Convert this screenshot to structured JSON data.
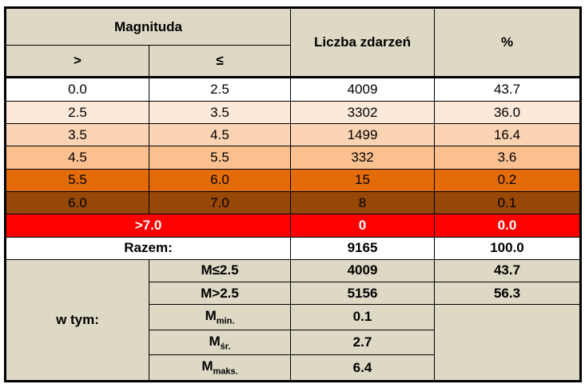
{
  "table": {
    "header": {
      "magnitude": "Magnituda",
      "gt": ">",
      "le": "≤",
      "count": "Liczba zdarzeń",
      "percent": "%"
    },
    "rows": [
      [
        "0.0",
        "2.5",
        "4009",
        "43.7"
      ],
      [
        "2.5",
        "3.5",
        "3302",
        "36.0"
      ],
      [
        "3.5",
        "4.5",
        "1499",
        "16.4"
      ],
      [
        "4.5",
        "5.5",
        "332",
        "3.6"
      ],
      [
        "5.5",
        "6.0",
        "15",
        "0.2"
      ],
      [
        "6.0",
        "7.0",
        "8",
        "0.1"
      ]
    ],
    "above": {
      "label": ">7.0",
      "count": "0",
      "percent": "0.0"
    },
    "total": {
      "label": "Razem:",
      "count": "9165",
      "percent": "100.0"
    },
    "breakdown": {
      "label": "w tym:",
      "rows": [
        {
          "label": "M≤2.5",
          "count": "4009",
          "percent": "43.7"
        },
        {
          "label": "M>2.5",
          "count": "5156",
          "percent": "56.3"
        },
        {
          "label": {
            "base": "M",
            "sub": "min."
          },
          "count": "0.1"
        },
        {
          "label": {
            "base": "M",
            "sub": "śr."
          },
          "count": "2.7"
        },
        {
          "label": {
            "base": "M",
            "sub": "maks."
          },
          "count": "6.4"
        }
      ]
    }
  }
}
